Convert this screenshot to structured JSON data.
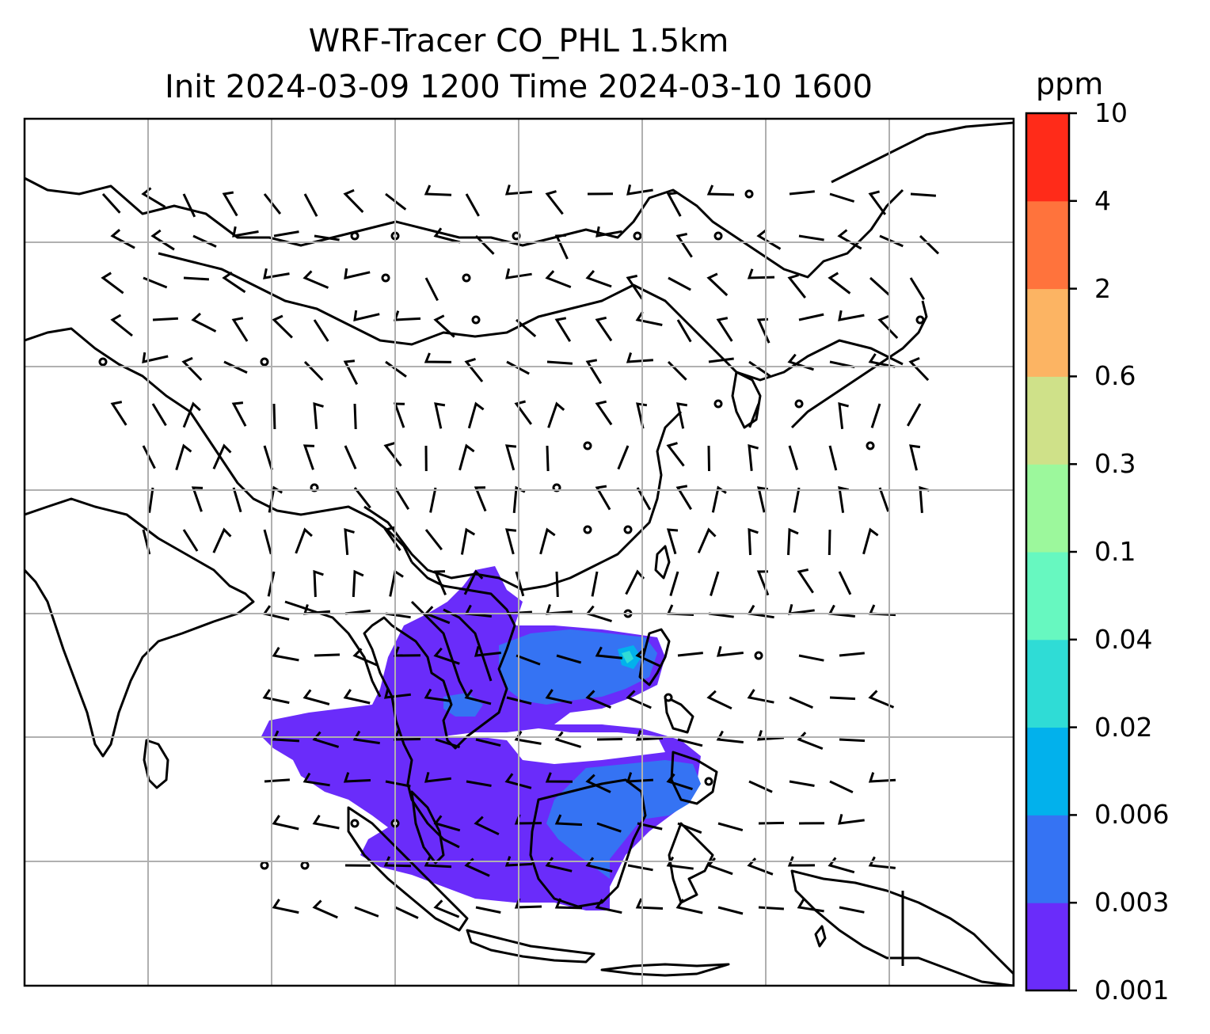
{
  "title": {
    "line1": "WRF-Tracer CO_PHL 1.5km",
    "line2": "Init 2024-03-09 1200 Time 2024-03-10 1600"
  },
  "colorbar": {
    "unit": "ppm",
    "levels": [
      "0.001",
      "0.003",
      "0.006",
      "0.02",
      "0.04",
      "0.1",
      "0.3",
      "0.6",
      "2",
      "4",
      "10"
    ],
    "colors": [
      "#6a2cfa",
      "#3573f3",
      "#02b1ec",
      "#2fdcd6",
      "#67f8c0",
      "#9cf89c",
      "#cfe189",
      "#fcb463",
      "#ff733c",
      "#ff2b19"
    ]
  },
  "map": {
    "region": "South and East Asia, Maritime Southeast Asia",
    "gridlines": true,
    "overlays": [
      "coastlines",
      "country borders",
      "wind barbs",
      "CO tracer concentration shading"
    ],
    "plume_levels": [
      "0.001",
      "0.003",
      "0.006",
      "0.02"
    ],
    "line_color": "#000000",
    "grid_color": "#b0b0b0"
  }
}
